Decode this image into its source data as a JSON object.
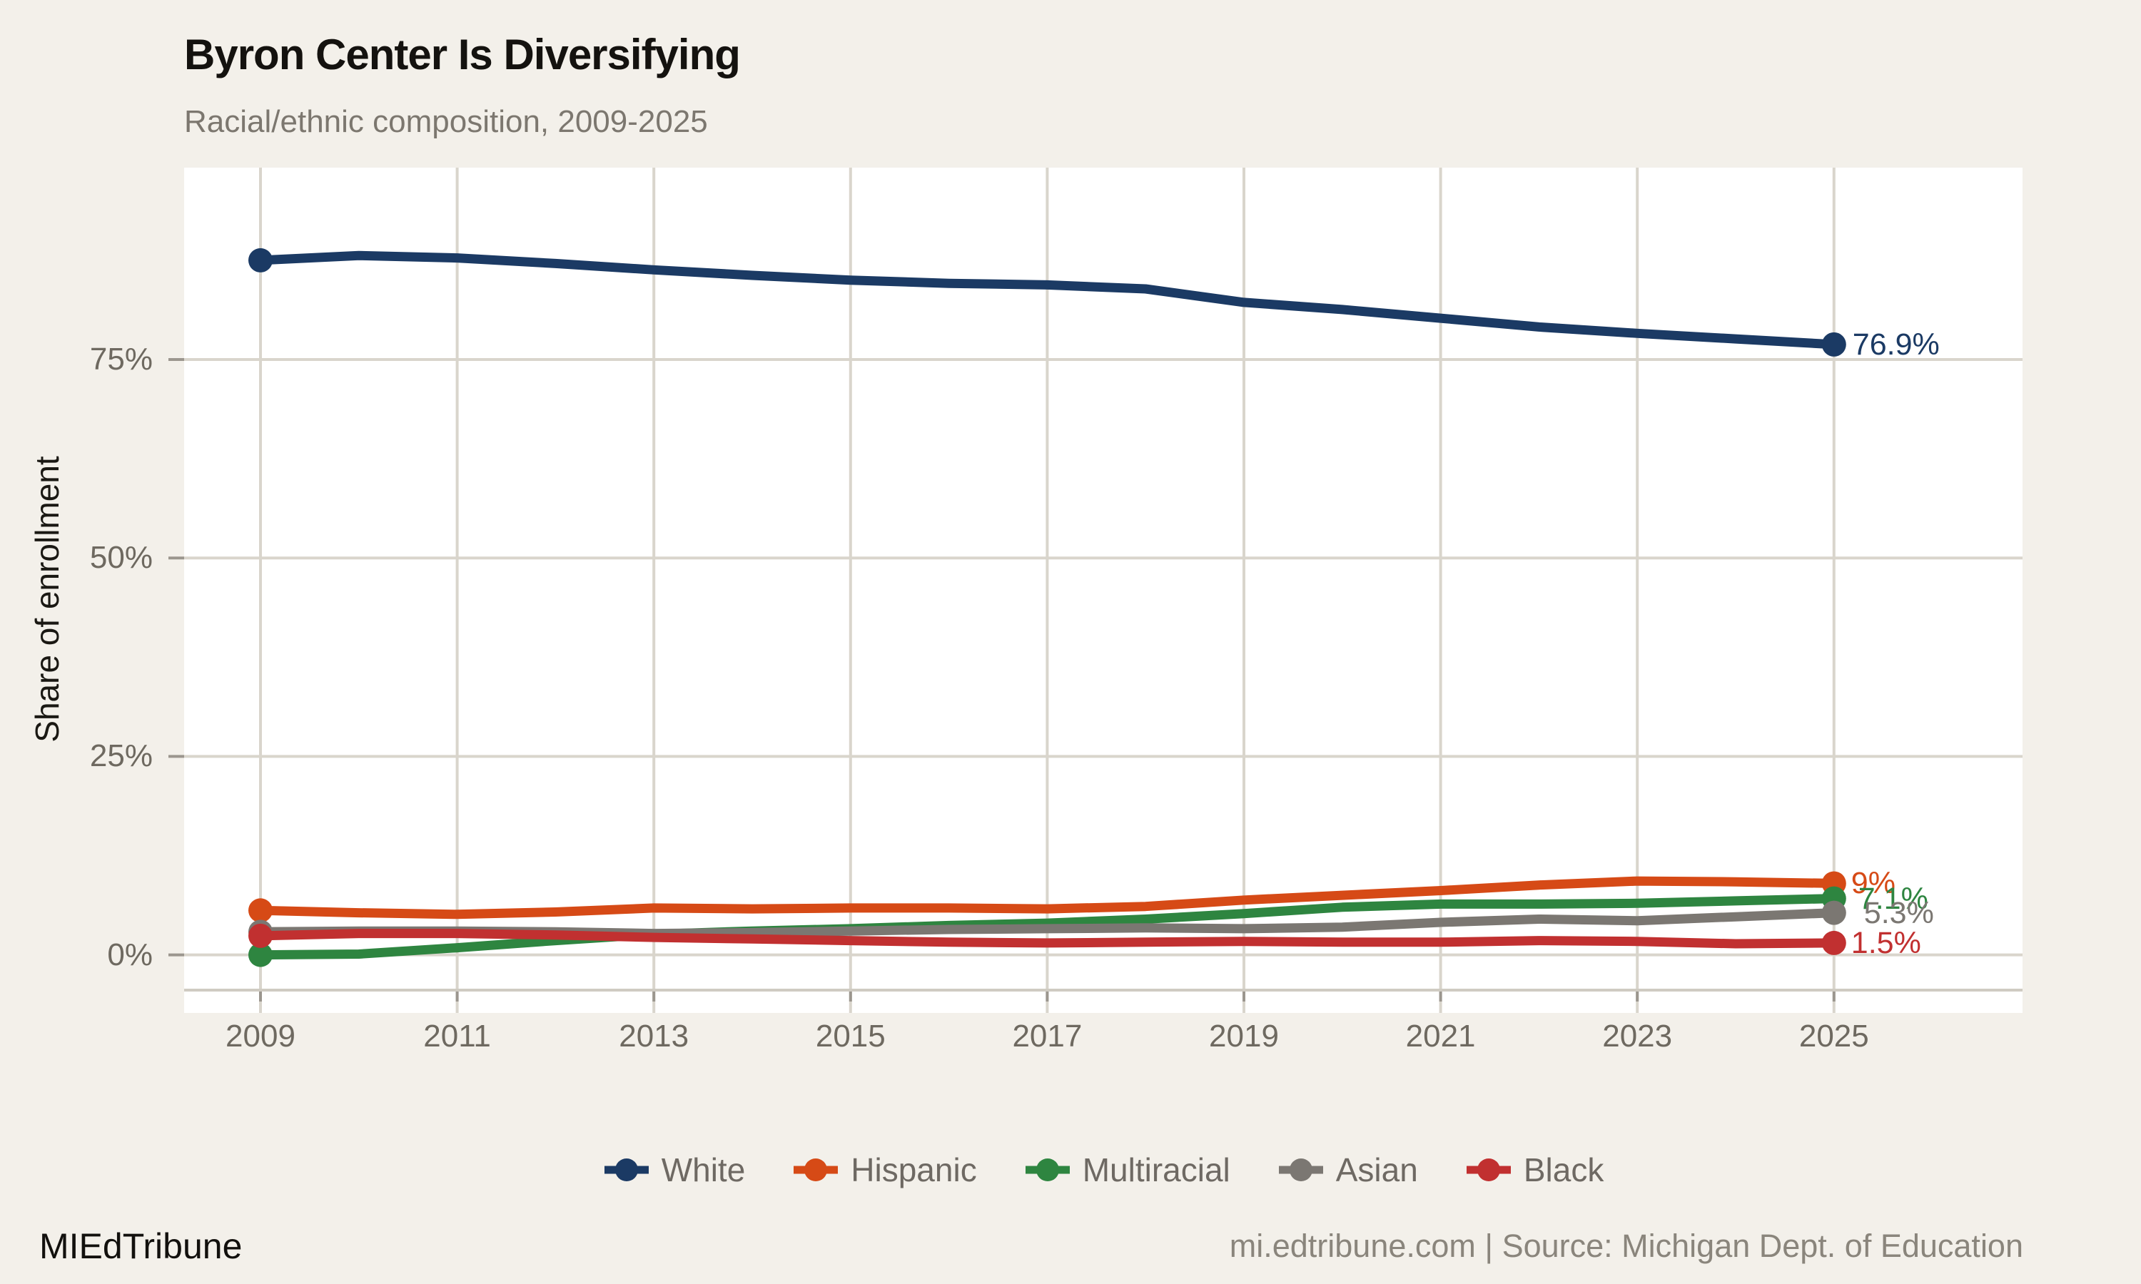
{
  "header": {
    "title": "Byron Center Is Diversifying",
    "subtitle": "Racial/ethnic composition, 2009-2025"
  },
  "colors": {
    "background": "#f3f0ea",
    "panel": "#ffffff",
    "gridline": "#d9d5cc",
    "axis_line": "#cfcbc2",
    "tick_text": "#6e6960",
    "title_text": "#14120f",
    "subtitle_text": "#7c776f",
    "white_series": "#1b3a64",
    "hispanic_series": "#d64a16",
    "multiracial_series": "#2e8540",
    "asian_series": "#7b7772",
    "black_series": "#c13030"
  },
  "chart_data": {
    "type": "line",
    "title": "Byron Center Is Diversifying",
    "subtitle": "Racial/ethnic composition, 2009-2025",
    "xlabel": "",
    "ylabel": "Share of enrollment",
    "ylim": [
      0,
      98
    ],
    "grid": true,
    "legend_position": "bottom",
    "x": [
      2009,
      2010,
      2011,
      2012,
      2013,
      2014,
      2015,
      2016,
      2017,
      2018,
      2019,
      2020,
      2021,
      2022,
      2023,
      2024,
      2025
    ],
    "x_tick_years": [
      2009,
      2011,
      2013,
      2015,
      2017,
      2019,
      2021,
      2023,
      2025
    ],
    "x_tick_labels": [
      "2009",
      "2011",
      "2013",
      "2015",
      "2017",
      "2019",
      "2021",
      "2023",
      "2025"
    ],
    "y_ticks": [
      {
        "value": 0,
        "label": "0%"
      },
      {
        "value": 25,
        "label": "25%"
      },
      {
        "value": 50,
        "label": "50%"
      },
      {
        "value": 75,
        "label": "75%"
      }
    ],
    "series": [
      {
        "name": "White",
        "color": "#1b3a64",
        "end_label": "76.9%",
        "values": [
          87.5,
          88.1,
          87.8,
          87.1,
          86.3,
          85.6,
          85.0,
          84.6,
          84.4,
          83.9,
          82.2,
          81.3,
          80.2,
          79.1,
          78.3,
          77.6,
          76.9
        ]
      },
      {
        "name": "Hispanic",
        "color": "#d64a16",
        "end_label": "9%",
        "values": [
          5.6,
          5.3,
          5.1,
          5.4,
          5.9,
          5.8,
          5.9,
          5.9,
          5.8,
          6.1,
          6.9,
          7.5,
          8.1,
          8.8,
          9.3,
          9.2,
          9.0
        ]
      },
      {
        "name": "Multiracial",
        "color": "#2e8540",
        "end_label": "7.1%",
        "values": [
          0.0,
          0.1,
          0.9,
          1.8,
          2.6,
          3.0,
          3.3,
          3.7,
          4.0,
          4.5,
          5.2,
          6.0,
          6.4,
          6.4,
          6.5,
          6.8,
          7.1
        ]
      },
      {
        "name": "Asian",
        "color": "#7b7772",
        "end_label": "5.3%",
        "values": [
          2.9,
          3.0,
          3.0,
          2.9,
          2.7,
          2.8,
          3.0,
          3.2,
          3.3,
          3.4,
          3.3,
          3.5,
          4.1,
          4.5,
          4.3,
          4.8,
          5.3
        ]
      },
      {
        "name": "Black",
        "color": "#c13030",
        "end_label": "1.5%",
        "values": [
          2.4,
          2.7,
          2.7,
          2.5,
          2.2,
          2.0,
          1.8,
          1.6,
          1.5,
          1.6,
          1.7,
          1.6,
          1.6,
          1.8,
          1.7,
          1.4,
          1.5
        ]
      }
    ]
  },
  "footer": {
    "brand": "MIEdTribune",
    "source": "mi.edtribune.com | Source: Michigan Dept. of Education"
  }
}
